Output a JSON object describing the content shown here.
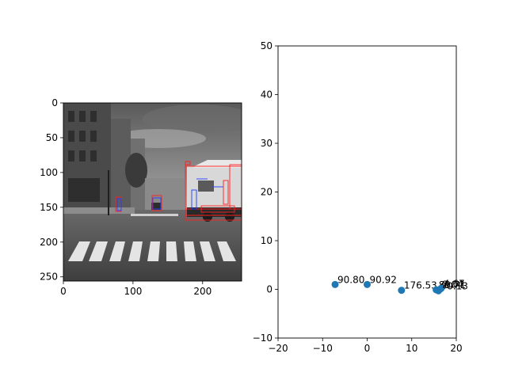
{
  "chart_data": [
    {
      "type": "image",
      "panel": "left",
      "xlim": [
        0,
        256
      ],
      "ylim": [
        256,
        0
      ],
      "xticks": [
        0,
        100,
        200
      ],
      "yticks": [
        0,
        50,
        100,
        150,
        200,
        250
      ],
      "image_content": "grayscale street scene: buildings on left, crosswalk in foreground, truck on right, annotated with red and blue bounding boxes",
      "colors": {
        "box_red": "#ff2020",
        "box_blue": "#2040ff"
      }
    },
    {
      "type": "scatter",
      "panel": "right",
      "xlim": [
        -20,
        20
      ],
      "ylim": [
        -10,
        50
      ],
      "xticks": [
        -20,
        -10,
        0,
        10,
        20
      ],
      "yticks": [
        -10,
        0,
        10,
        20,
        30,
        40,
        50
      ],
      "grid": false,
      "color": "#1f77b4",
      "points": [
        {
          "x": -7.2,
          "y": 1.0,
          "label": "90.80"
        },
        {
          "x": 0.0,
          "y": 1.0,
          "label": "90.92"
        },
        {
          "x": 7.7,
          "y": -0.2,
          "label": "176.53"
        },
        {
          "x": 15.5,
          "y": -0.1,
          "label": "89.71"
        },
        {
          "x": 16.0,
          "y": -0.3,
          "label": "90.13"
        },
        {
          "x": 16.6,
          "y": 0.2,
          "label": "4.67"
        },
        {
          "x": 16.3,
          "y": 0.0,
          "label": "2.04"
        }
      ]
    }
  ]
}
